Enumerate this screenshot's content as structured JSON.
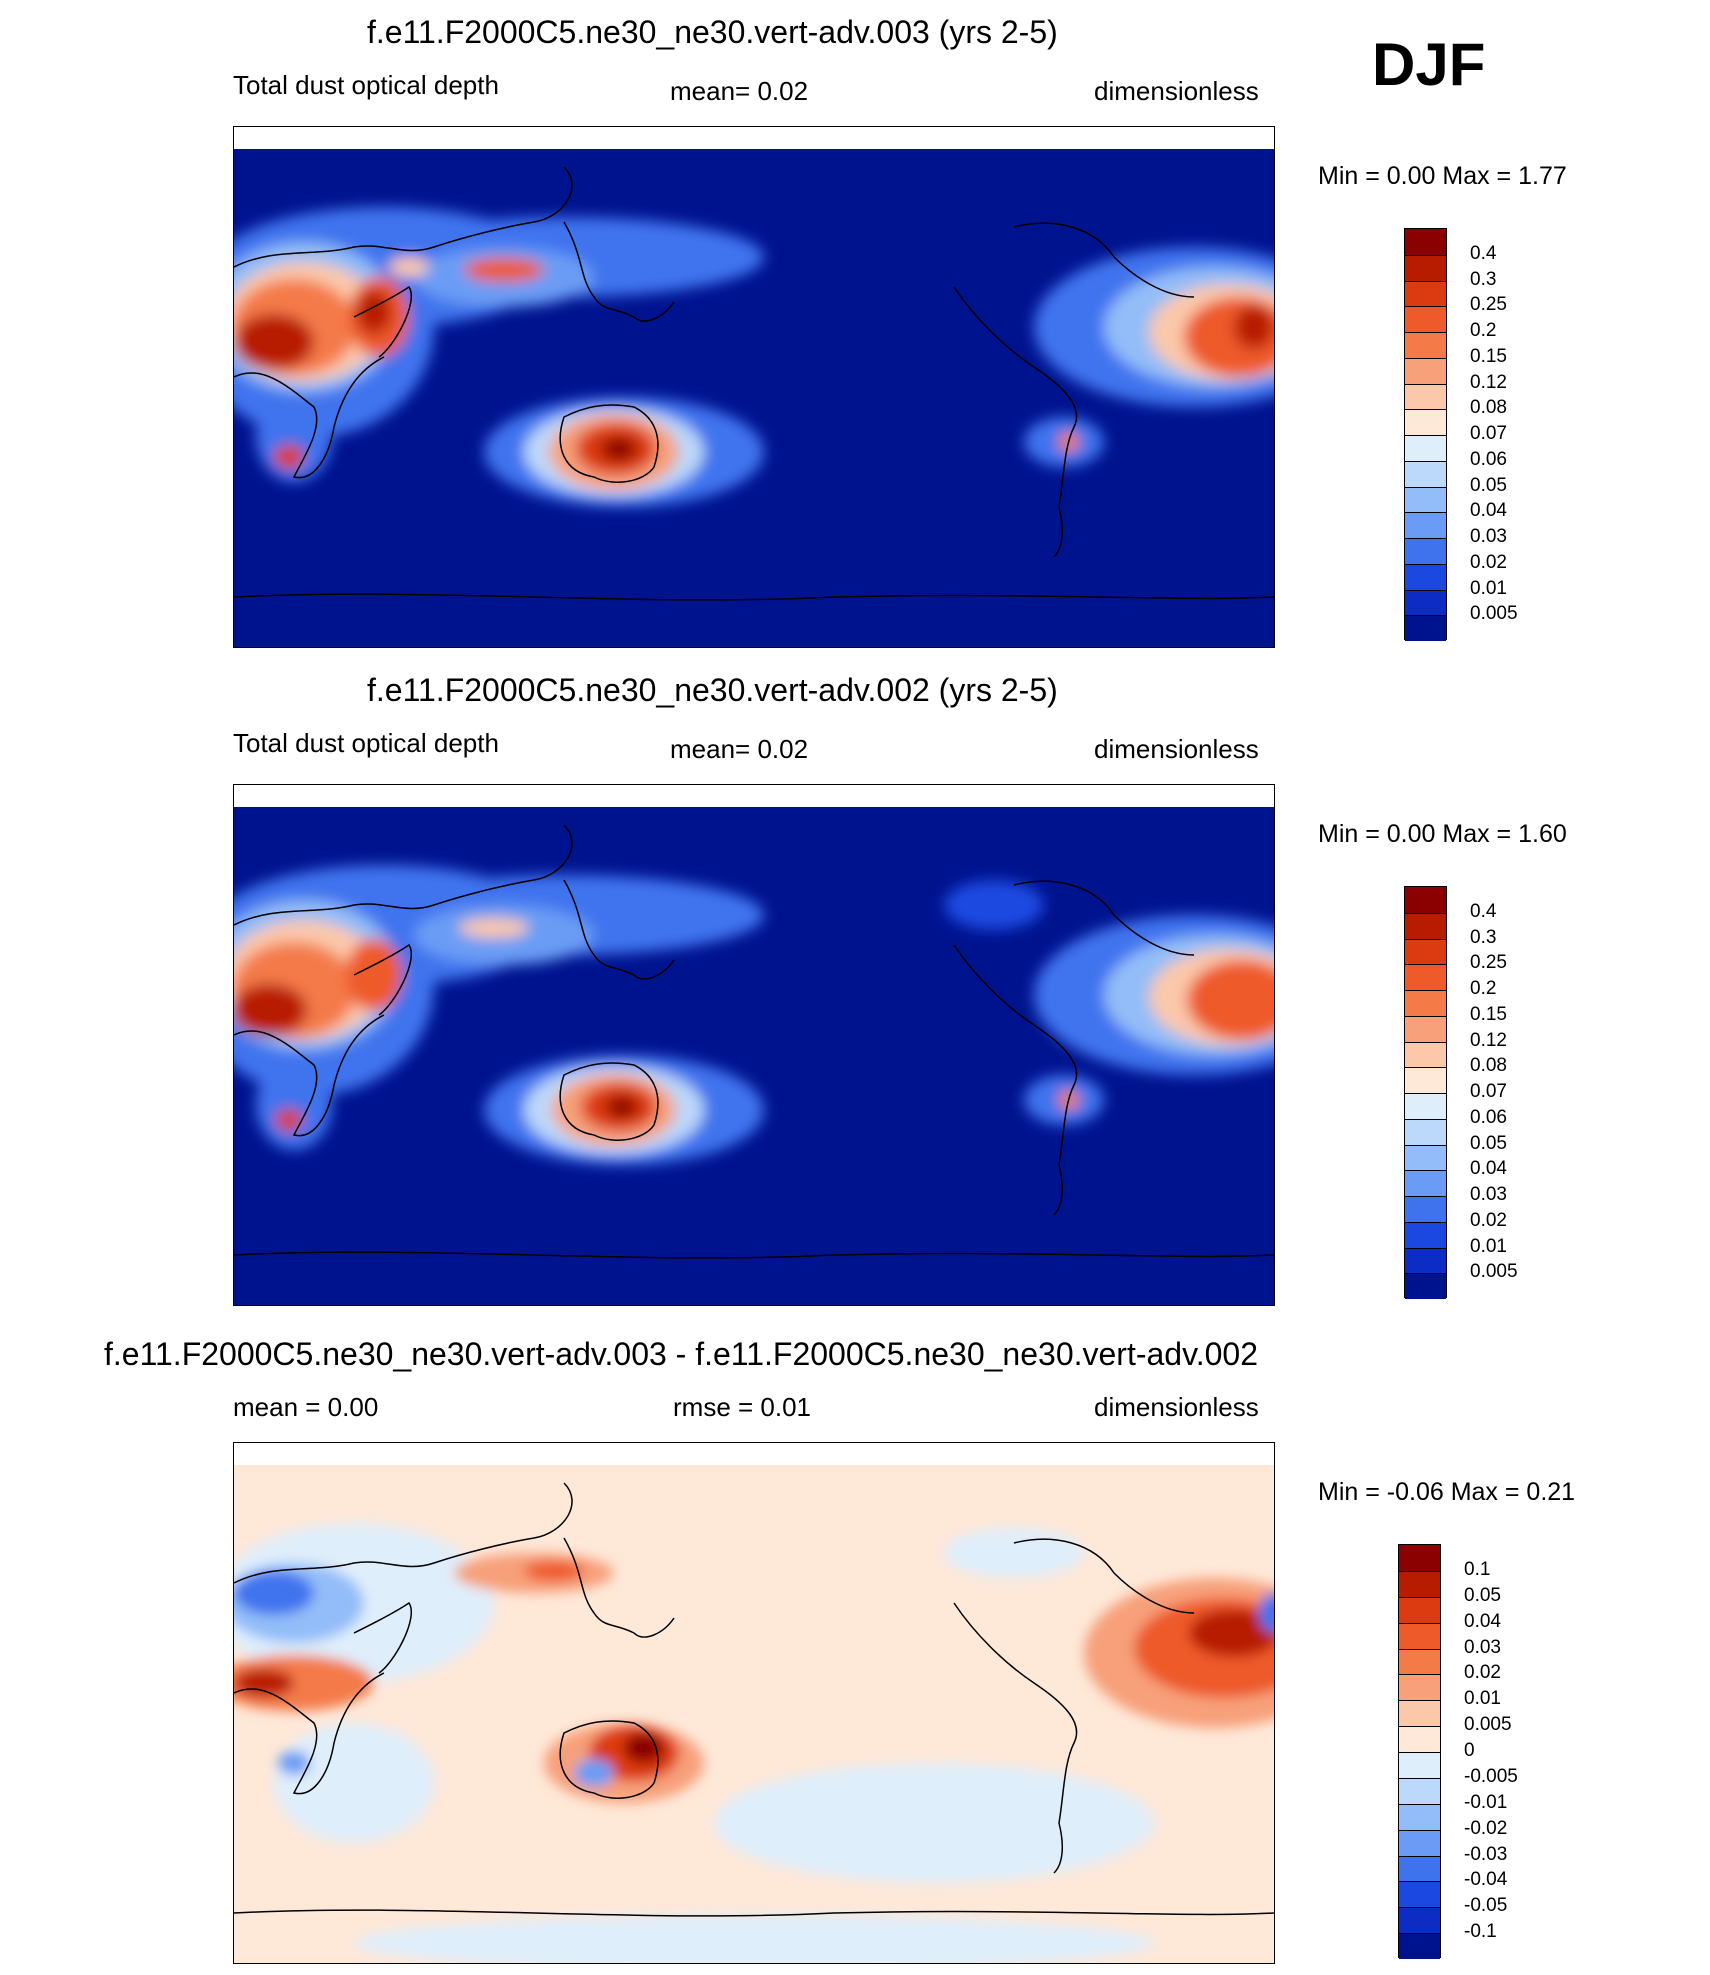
{
  "season": "DJF",
  "panels": [
    {
      "id": "top",
      "title": "f.e11.F2000C5.ne30_ne30.vert-adv.003 (yrs 2-5)",
      "left_label": "Total dust optical depth",
      "center_label": "mean=   0.02",
      "right_label": "dimensionless",
      "minmax": "Min =    0.00 Max =    1.77",
      "colorbar": {
        "labels": [
          "0.4",
          "0.3",
          "0.25",
          "0.2",
          "0.15",
          "0.12",
          "0.08",
          "0.07",
          "0.06",
          "0.05",
          "0.04",
          "0.03",
          "0.02",
          "0.01",
          "0.005"
        ],
        "colors": [
          "#8b0000",
          "#b81c00",
          "#dc3a10",
          "#ee5a2a",
          "#f47a48",
          "#f7a07a",
          "#fbc8aa",
          "#fee8d8",
          "#dfeefb",
          "#bcd8fb",
          "#93bdf8",
          "#6b9cf5",
          "#3f73ee",
          "#1a48e0",
          "#0c2cc4",
          "#00138f"
        ]
      }
    },
    {
      "id": "middle",
      "title": "f.e11.F2000C5.ne30_ne30.vert-adv.002 (yrs 2-5)",
      "left_label": "Total dust optical depth",
      "center_label": "mean=   0.02",
      "right_label": "dimensionless",
      "minmax": "Min =    0.00 Max =    1.60",
      "colorbar": {
        "labels": [
          "0.4",
          "0.3",
          "0.25",
          "0.2",
          "0.15",
          "0.12",
          "0.08",
          "0.07",
          "0.06",
          "0.05",
          "0.04",
          "0.03",
          "0.02",
          "0.01",
          "0.005"
        ],
        "colors": [
          "#8b0000",
          "#b81c00",
          "#dc3a10",
          "#ee5a2a",
          "#f47a48",
          "#f7a07a",
          "#fbc8aa",
          "#fee8d8",
          "#dfeefb",
          "#bcd8fb",
          "#93bdf8",
          "#6b9cf5",
          "#3f73ee",
          "#1a48e0",
          "#0c2cc4",
          "#00138f"
        ]
      }
    },
    {
      "id": "bottom",
      "title": "f.e11.F2000C5.ne30_ne30.vert-adv.003 - f.e11.F2000C5.ne30_ne30.vert-adv.002",
      "left_label": "mean =    0.00",
      "center_label": "rmse =    0.01",
      "right_label": "dimensionless",
      "minmax": "Min =  -0.06 Max =    0.21",
      "colorbar": {
        "labels": [
          "0.1",
          "0.05",
          "0.04",
          "0.03",
          "0.02",
          "0.01",
          "0.005",
          "0",
          "-0.005",
          "-0.01",
          "-0.02",
          "-0.03",
          "-0.04",
          "-0.05",
          "-0.1"
        ],
        "colors": [
          "#8b0000",
          "#b81c00",
          "#dc3a10",
          "#ee5a2a",
          "#f47a48",
          "#f7a07a",
          "#fbc8aa",
          "#fee8d8",
          "#dfeefb",
          "#bcd8fb",
          "#93bdf8",
          "#6b9cf5",
          "#3f73ee",
          "#1a48e0",
          "#0c2cc4",
          "#00138f"
        ]
      }
    }
  ]
}
